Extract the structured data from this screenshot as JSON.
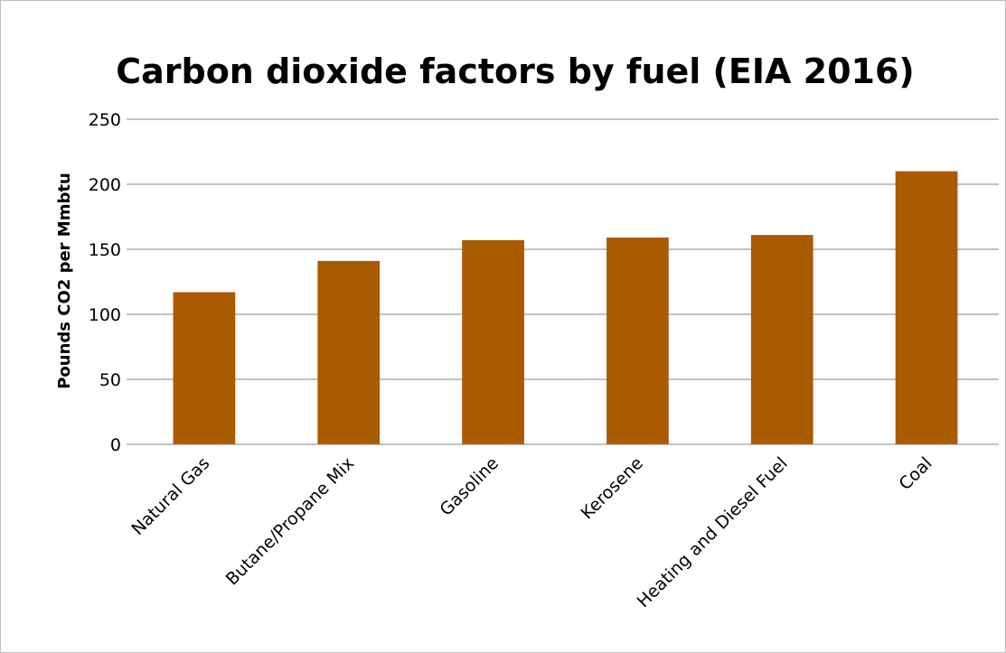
{
  "chart_data": {
    "type": "bar",
    "title": "Carbon dioxide factors by fuel (EIA 2016)",
    "xlabel": "",
    "ylabel": "Pounds CO2 per Mmbtu",
    "categories": [
      "Natural Gas",
      "Butane/Propane Mix",
      "Gasoline",
      "Kerosene",
      "Heating and Diesel Fuel",
      "Coal"
    ],
    "values": [
      117,
      141,
      157,
      159,
      161,
      210
    ],
    "ylim": [
      0,
      250
    ],
    "yticks": [
      "0",
      "50",
      "100",
      "150",
      "200",
      "250"
    ],
    "grid": true,
    "legend": "none",
    "bar_color": "#AA5A00"
  }
}
